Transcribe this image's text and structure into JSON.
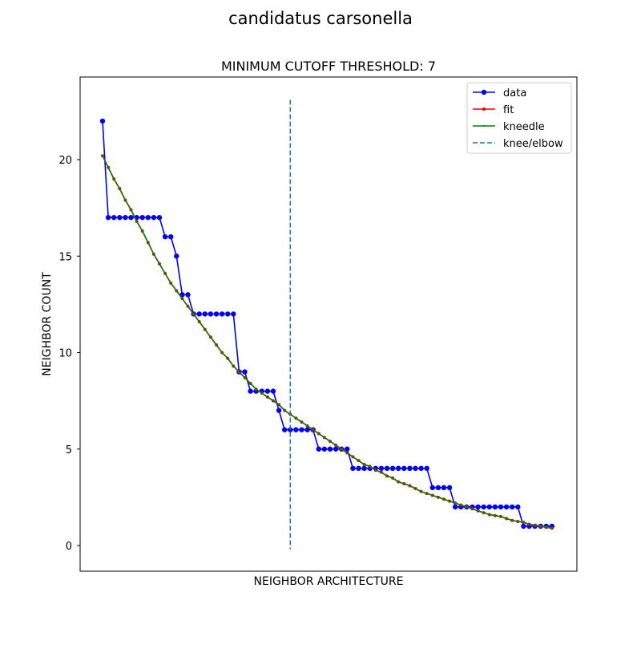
{
  "figure": {
    "suptitle": "candidatus carsonella"
  },
  "colors": {
    "data": "#0000ff",
    "fit": "#ff0000",
    "kneedle": "#008000",
    "knee": "#1f77b4"
  },
  "chart_data": {
    "type": "line",
    "title": "MINIMUM CUTOFF THRESHOLD: 7",
    "xlabel": "NEIGHBOR ARCHITECTURE",
    "ylabel": "NEIGHBOR COUNT",
    "ylim": [
      -1.35,
      24.2
    ],
    "yticks": [
      0,
      5,
      10,
      15,
      20
    ],
    "xticks_shown": false,
    "grid": false,
    "legend_position": "upper-right",
    "knee_x": 33,
    "knee_line_y_range": [
      -0.2,
      23.1
    ],
    "series": [
      {
        "name": "data",
        "marker": "circle",
        "x": [
          0,
          1,
          2,
          3,
          4,
          5,
          6,
          7,
          8,
          9,
          10,
          11,
          12,
          13,
          14,
          15,
          16,
          17,
          18,
          19,
          20,
          21,
          22,
          23,
          24,
          25,
          26,
          27,
          28,
          29,
          30,
          31,
          32,
          33,
          34,
          35,
          36,
          37,
          38,
          39,
          40,
          41,
          42,
          43,
          44,
          45,
          46,
          47,
          48,
          49,
          50,
          51,
          52,
          53,
          54,
          55,
          56,
          57,
          58,
          59,
          60,
          61,
          62,
          63,
          64,
          65,
          66,
          67,
          68,
          69,
          70,
          71,
          72,
          73,
          74,
          75,
          76,
          77,
          78,
          79
        ],
        "y": [
          22,
          17,
          17,
          17,
          17,
          17,
          17,
          17,
          17,
          17,
          17,
          16,
          16,
          15,
          13,
          13,
          12,
          12,
          12,
          12,
          12,
          12,
          12,
          12,
          9,
          9,
          8,
          8,
          8,
          8,
          8,
          7,
          6,
          6,
          6,
          6,
          6,
          6,
          5,
          5,
          5,
          5,
          5,
          5,
          4,
          4,
          4,
          4,
          4,
          4,
          4,
          4,
          4,
          4,
          4,
          4,
          4,
          4,
          3,
          3,
          3,
          3,
          2,
          2,
          2,
          2,
          2,
          2,
          2,
          2,
          2,
          2,
          2,
          2,
          1,
          1,
          1,
          1,
          1,
          1
        ]
      },
      {
        "name": "fit",
        "marker": "dot",
        "x": [
          0,
          1,
          2,
          3,
          4,
          5,
          6,
          7,
          8,
          9,
          10,
          11,
          12,
          13,
          14,
          15,
          16,
          17,
          18,
          19,
          20,
          21,
          22,
          23,
          24,
          25,
          26,
          27,
          28,
          29,
          30,
          31,
          32,
          33,
          34,
          35,
          36,
          37,
          38,
          39,
          40,
          41,
          42,
          43,
          44,
          45,
          46,
          47,
          48,
          49,
          50,
          51,
          52,
          53,
          54,
          55,
          56,
          57,
          58,
          59,
          60,
          61,
          62,
          63,
          64,
          65,
          66,
          67,
          68,
          69,
          70,
          71,
          72,
          73,
          74,
          75,
          76,
          77,
          78,
          79
        ],
        "y": [
          20.2,
          19.6,
          19.0,
          18.5,
          17.9,
          17.4,
          16.8,
          16.3,
          15.7,
          15.1,
          14.6,
          14.1,
          13.6,
          13.2,
          12.8,
          12.4,
          12.0,
          11.6,
          11.2,
          10.8,
          10.4,
          10.0,
          9.7,
          9.3,
          9.0,
          8.7,
          8.4,
          8.1,
          7.9,
          7.7,
          7.5,
          7.3,
          7.0,
          6.8,
          6.6,
          6.4,
          6.2,
          6.0,
          5.8,
          5.6,
          5.4,
          5.2,
          5.0,
          4.8,
          4.6,
          4.4,
          4.2,
          4.1,
          3.9,
          3.8,
          3.6,
          3.5,
          3.3,
          3.2,
          3.1,
          2.95,
          2.8,
          2.7,
          2.6,
          2.5,
          2.4,
          2.3,
          2.2,
          2.1,
          2.0,
          1.9,
          1.8,
          1.7,
          1.6,
          1.55,
          1.5,
          1.4,
          1.3,
          1.25,
          1.2,
          1.1,
          1.05,
          1.0,
          0.95,
          0.9
        ]
      },
      {
        "name": "kneedle",
        "marker": "small-dot",
        "x": [
          0,
          1,
          2,
          3,
          4,
          5,
          6,
          7,
          8,
          9,
          10,
          11,
          12,
          13,
          14,
          15,
          16,
          17,
          18,
          19,
          20,
          21,
          22,
          23,
          24,
          25,
          26,
          27,
          28,
          29,
          30,
          31,
          32,
          33,
          34,
          35,
          36,
          37,
          38,
          39,
          40,
          41,
          42,
          43,
          44,
          45,
          46,
          47,
          48,
          49,
          50,
          51,
          52,
          53,
          54,
          55,
          56,
          57,
          58,
          59,
          60,
          61,
          62,
          63,
          64,
          65,
          66,
          67,
          68,
          69,
          70,
          71,
          72,
          73,
          74,
          75,
          76,
          77,
          78,
          79
        ],
        "y": [
          20.2,
          19.6,
          19.0,
          18.5,
          17.9,
          17.4,
          16.8,
          16.3,
          15.7,
          15.1,
          14.6,
          14.1,
          13.6,
          13.2,
          12.8,
          12.4,
          12.0,
          11.6,
          11.2,
          10.8,
          10.4,
          10.0,
          9.7,
          9.3,
          9.0,
          8.7,
          8.4,
          8.1,
          7.9,
          7.7,
          7.5,
          7.3,
          7.0,
          6.8,
          6.6,
          6.4,
          6.2,
          6.0,
          5.8,
          5.6,
          5.4,
          5.2,
          5.0,
          4.8,
          4.6,
          4.4,
          4.2,
          4.1,
          3.9,
          3.8,
          3.6,
          3.5,
          3.3,
          3.2,
          3.1,
          2.95,
          2.8,
          2.7,
          2.6,
          2.5,
          2.4,
          2.3,
          2.2,
          2.1,
          2.0,
          1.9,
          1.8,
          1.7,
          1.6,
          1.55,
          1.5,
          1.4,
          1.3,
          1.25,
          1.2,
          1.1,
          1.05,
          1.0,
          0.95,
          0.9
        ]
      }
    ],
    "legend": [
      "data",
      "fit",
      "kneedle",
      "knee/elbow"
    ]
  }
}
